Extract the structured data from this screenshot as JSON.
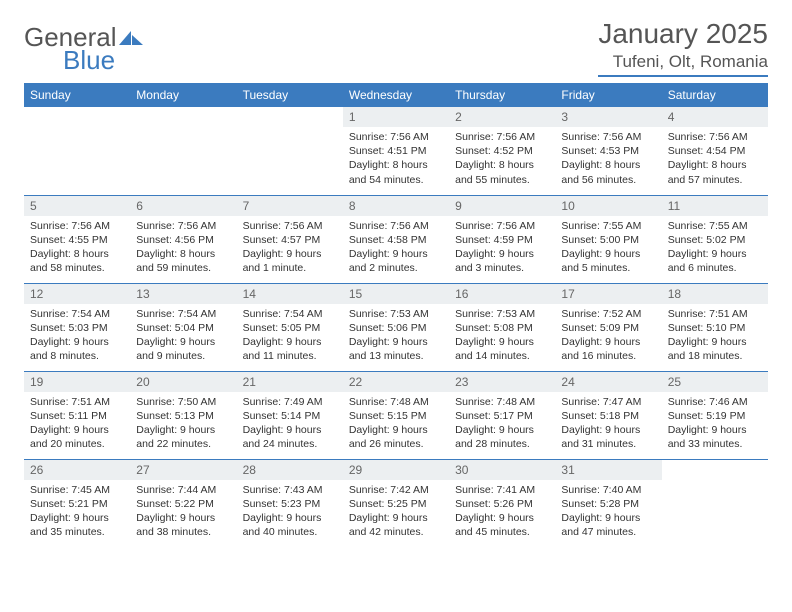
{
  "brand": {
    "word1": "General",
    "word2": "Blue"
  },
  "title": "January 2025",
  "location": "Tufeni, Olt, Romania",
  "colors": {
    "header_bg": "#3b7bbf",
    "header_text": "#ffffff",
    "daynum_bg": "#eceff1",
    "text": "#333333",
    "rule": "#3b7bbf",
    "background": "#ffffff"
  },
  "day_headers": [
    "Sunday",
    "Monday",
    "Tuesday",
    "Wednesday",
    "Thursday",
    "Friday",
    "Saturday"
  ],
  "weeks": [
    [
      {
        "n": "",
        "empty": true
      },
      {
        "n": "",
        "empty": true
      },
      {
        "n": "",
        "empty": true
      },
      {
        "n": "1",
        "sunrise": "Sunrise: 7:56 AM",
        "sunset": "Sunset: 4:51 PM",
        "daylight": "Daylight: 8 hours and 54 minutes."
      },
      {
        "n": "2",
        "sunrise": "Sunrise: 7:56 AM",
        "sunset": "Sunset: 4:52 PM",
        "daylight": "Daylight: 8 hours and 55 minutes."
      },
      {
        "n": "3",
        "sunrise": "Sunrise: 7:56 AM",
        "sunset": "Sunset: 4:53 PM",
        "daylight": "Daylight: 8 hours and 56 minutes."
      },
      {
        "n": "4",
        "sunrise": "Sunrise: 7:56 AM",
        "sunset": "Sunset: 4:54 PM",
        "daylight": "Daylight: 8 hours and 57 minutes."
      }
    ],
    [
      {
        "n": "5",
        "sunrise": "Sunrise: 7:56 AM",
        "sunset": "Sunset: 4:55 PM",
        "daylight": "Daylight: 8 hours and 58 minutes."
      },
      {
        "n": "6",
        "sunrise": "Sunrise: 7:56 AM",
        "sunset": "Sunset: 4:56 PM",
        "daylight": "Daylight: 8 hours and 59 minutes."
      },
      {
        "n": "7",
        "sunrise": "Sunrise: 7:56 AM",
        "sunset": "Sunset: 4:57 PM",
        "daylight": "Daylight: 9 hours and 1 minute."
      },
      {
        "n": "8",
        "sunrise": "Sunrise: 7:56 AM",
        "sunset": "Sunset: 4:58 PM",
        "daylight": "Daylight: 9 hours and 2 minutes."
      },
      {
        "n": "9",
        "sunrise": "Sunrise: 7:56 AM",
        "sunset": "Sunset: 4:59 PM",
        "daylight": "Daylight: 9 hours and 3 minutes."
      },
      {
        "n": "10",
        "sunrise": "Sunrise: 7:55 AM",
        "sunset": "Sunset: 5:00 PM",
        "daylight": "Daylight: 9 hours and 5 minutes."
      },
      {
        "n": "11",
        "sunrise": "Sunrise: 7:55 AM",
        "sunset": "Sunset: 5:02 PM",
        "daylight": "Daylight: 9 hours and 6 minutes."
      }
    ],
    [
      {
        "n": "12",
        "sunrise": "Sunrise: 7:54 AM",
        "sunset": "Sunset: 5:03 PM",
        "daylight": "Daylight: 9 hours and 8 minutes."
      },
      {
        "n": "13",
        "sunrise": "Sunrise: 7:54 AM",
        "sunset": "Sunset: 5:04 PM",
        "daylight": "Daylight: 9 hours and 9 minutes."
      },
      {
        "n": "14",
        "sunrise": "Sunrise: 7:54 AM",
        "sunset": "Sunset: 5:05 PM",
        "daylight": "Daylight: 9 hours and 11 minutes."
      },
      {
        "n": "15",
        "sunrise": "Sunrise: 7:53 AM",
        "sunset": "Sunset: 5:06 PM",
        "daylight": "Daylight: 9 hours and 13 minutes."
      },
      {
        "n": "16",
        "sunrise": "Sunrise: 7:53 AM",
        "sunset": "Sunset: 5:08 PM",
        "daylight": "Daylight: 9 hours and 14 minutes."
      },
      {
        "n": "17",
        "sunrise": "Sunrise: 7:52 AM",
        "sunset": "Sunset: 5:09 PM",
        "daylight": "Daylight: 9 hours and 16 minutes."
      },
      {
        "n": "18",
        "sunrise": "Sunrise: 7:51 AM",
        "sunset": "Sunset: 5:10 PM",
        "daylight": "Daylight: 9 hours and 18 minutes."
      }
    ],
    [
      {
        "n": "19",
        "sunrise": "Sunrise: 7:51 AM",
        "sunset": "Sunset: 5:11 PM",
        "daylight": "Daylight: 9 hours and 20 minutes."
      },
      {
        "n": "20",
        "sunrise": "Sunrise: 7:50 AM",
        "sunset": "Sunset: 5:13 PM",
        "daylight": "Daylight: 9 hours and 22 minutes."
      },
      {
        "n": "21",
        "sunrise": "Sunrise: 7:49 AM",
        "sunset": "Sunset: 5:14 PM",
        "daylight": "Daylight: 9 hours and 24 minutes."
      },
      {
        "n": "22",
        "sunrise": "Sunrise: 7:48 AM",
        "sunset": "Sunset: 5:15 PM",
        "daylight": "Daylight: 9 hours and 26 minutes."
      },
      {
        "n": "23",
        "sunrise": "Sunrise: 7:48 AM",
        "sunset": "Sunset: 5:17 PM",
        "daylight": "Daylight: 9 hours and 28 minutes."
      },
      {
        "n": "24",
        "sunrise": "Sunrise: 7:47 AM",
        "sunset": "Sunset: 5:18 PM",
        "daylight": "Daylight: 9 hours and 31 minutes."
      },
      {
        "n": "25",
        "sunrise": "Sunrise: 7:46 AM",
        "sunset": "Sunset: 5:19 PM",
        "daylight": "Daylight: 9 hours and 33 minutes."
      }
    ],
    [
      {
        "n": "26",
        "sunrise": "Sunrise: 7:45 AM",
        "sunset": "Sunset: 5:21 PM",
        "daylight": "Daylight: 9 hours and 35 minutes."
      },
      {
        "n": "27",
        "sunrise": "Sunrise: 7:44 AM",
        "sunset": "Sunset: 5:22 PM",
        "daylight": "Daylight: 9 hours and 38 minutes."
      },
      {
        "n": "28",
        "sunrise": "Sunrise: 7:43 AM",
        "sunset": "Sunset: 5:23 PM",
        "daylight": "Daylight: 9 hours and 40 minutes."
      },
      {
        "n": "29",
        "sunrise": "Sunrise: 7:42 AM",
        "sunset": "Sunset: 5:25 PM",
        "daylight": "Daylight: 9 hours and 42 minutes."
      },
      {
        "n": "30",
        "sunrise": "Sunrise: 7:41 AM",
        "sunset": "Sunset: 5:26 PM",
        "daylight": "Daylight: 9 hours and 45 minutes."
      },
      {
        "n": "31",
        "sunrise": "Sunrise: 7:40 AM",
        "sunset": "Sunset: 5:28 PM",
        "daylight": "Daylight: 9 hours and 47 minutes."
      },
      {
        "n": "",
        "empty": true
      }
    ]
  ]
}
